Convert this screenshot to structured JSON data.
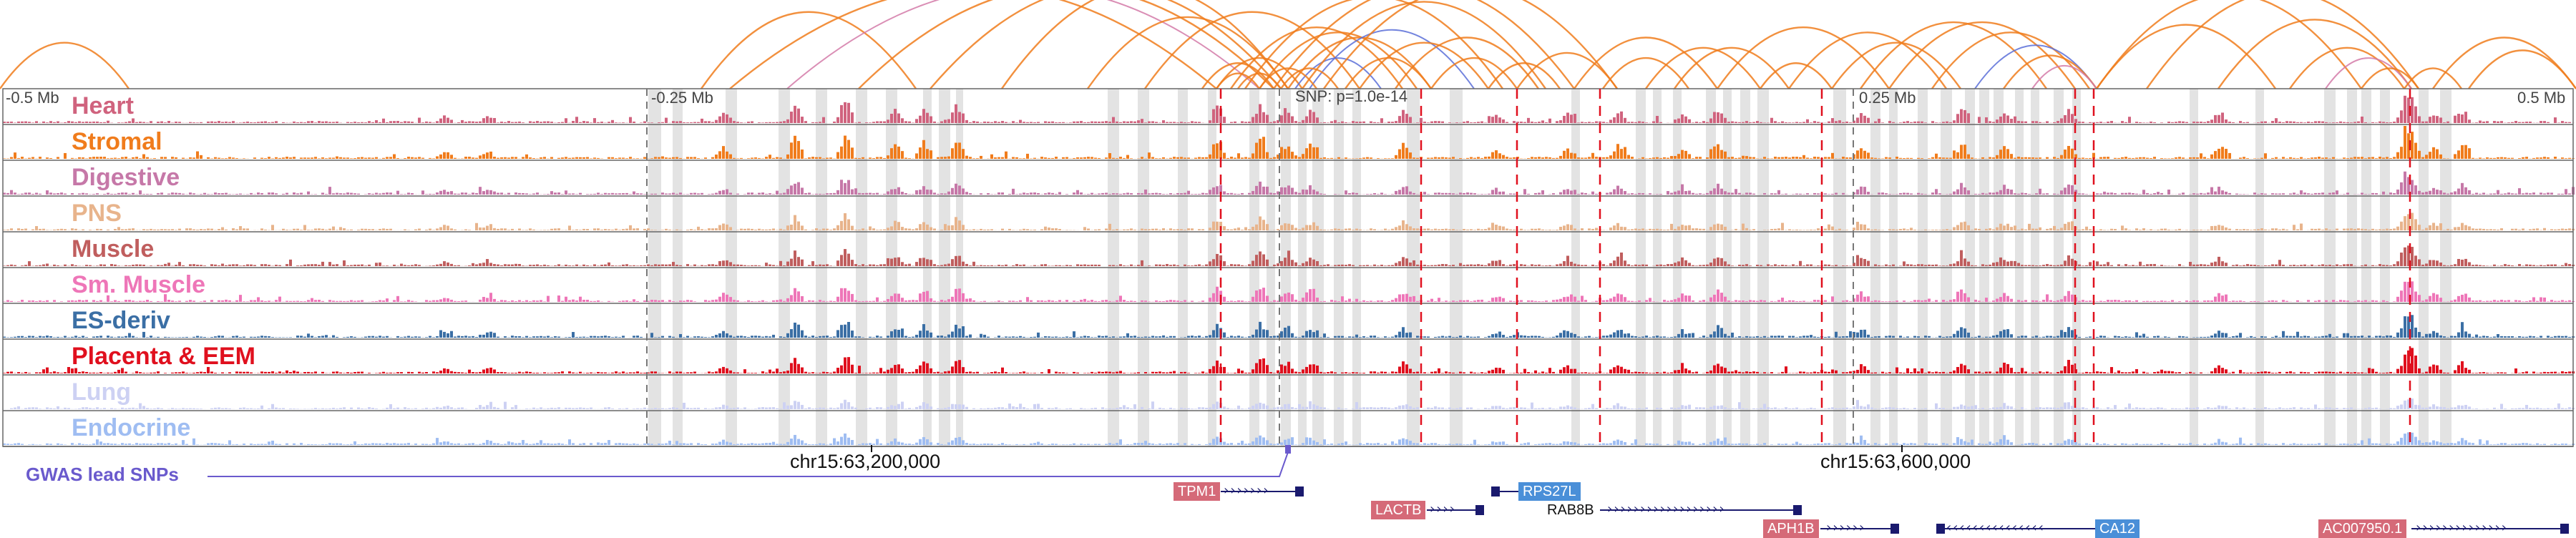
{
  "tracks": [
    {
      "name": "Heart",
      "color": "#d0637e"
    },
    {
      "name": "Stromal",
      "color": "#f07c1c"
    },
    {
      "name": "Digestive",
      "color": "#c678a8"
    },
    {
      "name": "PNS",
      "color": "#e8b48c"
    },
    {
      "name": "Muscle",
      "color": "#c05e5e"
    },
    {
      "name": "Sm. Muscle",
      "color": "#ee76b8"
    },
    {
      "name": "ES-deriv",
      "color": "#3b6fa5"
    },
    {
      "name": "Placenta & EEM",
      "color": "#e0101e"
    },
    {
      "name": "Lung",
      "color": "#cdd1f3"
    },
    {
      "name": "Endocrine",
      "color": "#9fbdf2"
    }
  ],
  "scale_labels": [
    "-0.5 Mb",
    "-0.25 Mb",
    "0.25 Mb",
    "0.5 Mb"
  ],
  "snp_label": "SNP: p=1.0e-14",
  "coord_labels": [
    "chr15:63,200,000",
    "chr15:63,600,000"
  ],
  "gwas_label": "GWAS lead SNPs",
  "genes": [
    {
      "name": "TPM1",
      "strand": "+",
      "color": "#d56a78"
    },
    {
      "name": "LACTB",
      "strand": "+",
      "color": "#d56a78"
    },
    {
      "name": "RPS27L",
      "strand": "-",
      "color": "#4a8fd8"
    },
    {
      "name": "RAB8B",
      "strand": "+",
      "color": ""
    },
    {
      "name": "APH1B",
      "strand": "+",
      "color": "#d56a78"
    },
    {
      "name": "CA12",
      "strand": "-",
      "color": "#4a8fd8"
    },
    {
      "name": "AC007950.1",
      "strand": "+",
      "color": "#d56a78"
    }
  ],
  "colors": {
    "loop_orange": "#f07c1c",
    "loop_blue": "#5a6fd8",
    "loop_pink": "#d47aa8",
    "snp_marker": "#6a5acd",
    "dashed_line": "#e0101e"
  }
}
